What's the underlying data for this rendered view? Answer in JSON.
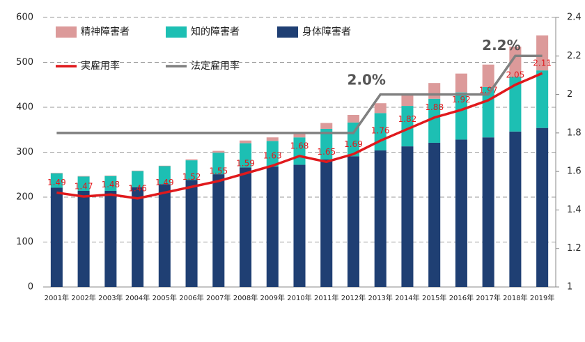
{
  "chart_data": {
    "type": "bar",
    "stacked": true,
    "categories": [
      "2001年",
      "2002年",
      "2003年",
      "2004年",
      "2005年",
      "2006年",
      "2007年",
      "2008年",
      "2009年",
      "2010年",
      "2011年",
      "2012年",
      "2013年",
      "2014年",
      "2015年",
      "2016年",
      "2017年",
      "2018年",
      "2019年"
    ],
    "series": [
      {
        "name": "身体障害者",
        "color": "#1f3f73",
        "values": [
          221,
          214,
          214,
          222,
          229,
          238,
          251,
          266,
          268,
          272,
          284,
          291,
          304,
          313,
          321,
          328,
          333,
          346,
          354
        ]
      },
      {
        "name": "知的障害者",
        "color": "#1dbfb3",
        "values": [
          32,
          32,
          33,
          36,
          40,
          44,
          48,
          54,
          57,
          61,
          68,
          75,
          83,
          90,
          98,
          105,
          112,
          122,
          128
        ]
      },
      {
        "name": "精神障害者",
        "color": "#dc9a9a",
        "values": [
          1,
          1,
          1,
          1,
          1,
          2,
          4,
          6,
          8,
          10,
          13,
          17,
          22,
          28,
          35,
          42,
          50,
          67,
          78
        ]
      },
      {
        "name": "実雇用率",
        "color": "#e0191c",
        "axis": "y2",
        "labels": true,
        "values": [
          1.49,
          1.47,
          1.48,
          1.46,
          1.49,
          1.52,
          1.55,
          1.59,
          1.63,
          1.68,
          1.65,
          1.69,
          1.76,
          1.82,
          1.88,
          1.92,
          1.97,
          2.05,
          2.11
        ]
      },
      {
        "name": "法定雇用率",
        "color": "#808080",
        "axis": "y2",
        "values": [
          1.8,
          1.8,
          1.8,
          1.8,
          1.8,
          1.8,
          1.8,
          1.8,
          1.8,
          1.8,
          1.8,
          1.8,
          2.0,
          2.0,
          2.0,
          2.0,
          2.0,
          2.2,
          2.2
        ]
      }
    ],
    "legend_order": [
      2,
      1,
      0,
      3,
      4
    ],
    "annotations": [
      {
        "text": "2.0%",
        "category": 12,
        "y2": 2.07
      },
      {
        "text": "2.2%",
        "category": 17,
        "y2": 2.25
      }
    ],
    "ylim": [
      0,
      600
    ],
    "yticks": [
      0,
      100,
      200,
      300,
      400,
      500,
      600
    ],
    "y2lim": [
      1,
      2.4
    ],
    "y2ticks": [
      1,
      1.2,
      1.4,
      1.6,
      1.8,
      2,
      2.2,
      2.4
    ],
    "grid": true
  }
}
